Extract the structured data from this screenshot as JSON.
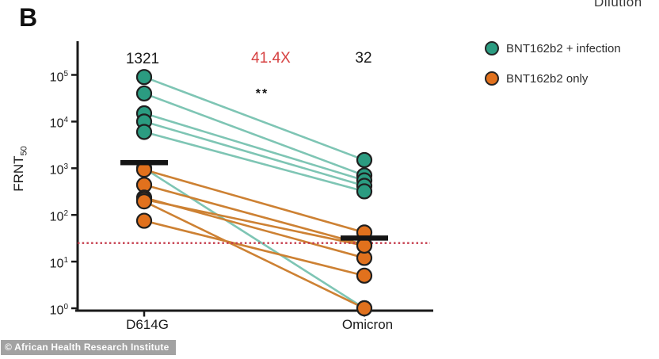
{
  "panel_label": "B",
  "top_right_clipped_text": "Dilution",
  "watermark": "© African Health Research Institute",
  "annotations": {
    "d614g_gmt": "1321",
    "fold_drop": "41.4X",
    "significance": "**",
    "omicron_gmt": "32"
  },
  "legend": [
    {
      "label": "BNT162b2 + infection",
      "color": "#2b9c81"
    },
    {
      "label": "BNT162b2 only",
      "color": "#e1711d"
    }
  ],
  "colors": {
    "axis": "#1a1a1a",
    "green_dot": "#2b9c81",
    "green_line": "#7ec5b4",
    "orange_dot": "#e1711d",
    "orange_line": "#cd8133",
    "dot_stroke": "#1f1f1f",
    "gmt_bar": "#141414",
    "detection_line": "#c53b4b",
    "fold_text": "#d64040"
  },
  "chart_data": {
    "type": "scatter",
    "subtype": "paired-dot-plot-log-scale",
    "ylabel_main": "FRNT",
    "ylabel_sub": "50",
    "categories": [
      "D614G",
      "Omicron"
    ],
    "ytick_exponents": [
      0,
      1,
      2,
      3,
      4,
      5
    ],
    "ylim": [
      1,
      200000
    ],
    "grid": false,
    "legend_position": "right",
    "detection_limit": 25,
    "gmt_values": {
      "D614G": 1321,
      "Omicron": 32
    },
    "fold_change_label": "41.4X",
    "significance_label": "**",
    "series": [
      {
        "name": "BNT162b2 + infection",
        "pairs": [
          [
            90000,
            1500
          ],
          [
            40000,
            700
          ],
          [
            15000,
            550
          ],
          [
            10000,
            420
          ],
          [
            6000,
            320
          ],
          [
            1000,
            1
          ]
        ]
      },
      {
        "name": "BNT162b2 only",
        "pairs": [
          [
            930,
            42
          ],
          [
            440,
            23
          ],
          [
            235,
            12
          ],
          [
            215,
            22
          ],
          [
            195,
            1
          ],
          [
            75,
            5
          ]
        ]
      }
    ]
  }
}
